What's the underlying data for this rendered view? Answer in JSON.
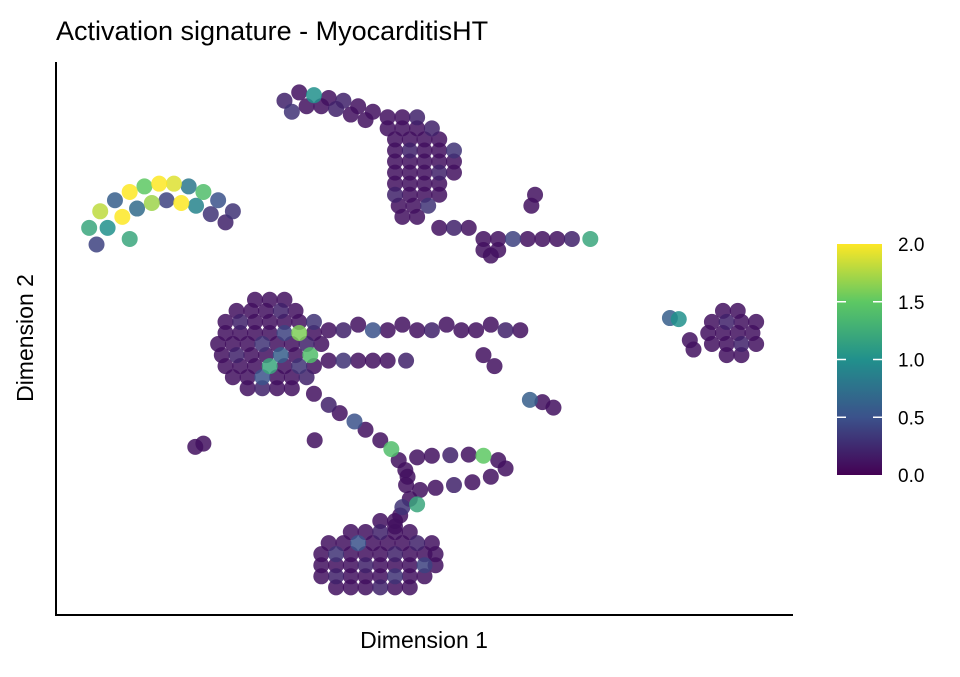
{
  "chart_data": {
    "type": "scatter",
    "title": "Activation signature - MyocarditisHT",
    "xlabel": "Dimension 1",
    "ylabel": "Dimension 2",
    "xlim": [
      0,
      100
    ],
    "ylim": [
      0,
      100
    ],
    "grid": false,
    "axis_ticks": false,
    "colorscale": "viridis",
    "colorscale_stops": [
      "#440154",
      "#3b528b",
      "#21908c",
      "#5dc863",
      "#fde725"
    ],
    "color_range": [
      0,
      2
    ],
    "legend": {
      "position": "right",
      "ticks": [
        "0.0",
        "0.5",
        "1.0",
        "1.5",
        "2.0"
      ]
    },
    "points": [
      [
        4.5,
        70,
        1.2
      ],
      [
        6,
        73,
        1.8
      ],
      [
        8,
        75,
        0.6
      ],
      [
        10,
        76.5,
        2.0
      ],
      [
        12,
        77.5,
        1.5
      ],
      [
        14,
        78,
        2.0
      ],
      [
        16,
        78,
        1.9
      ],
      [
        18,
        77.5,
        0.8
      ],
      [
        20,
        76.5,
        1.4
      ],
      [
        22,
        75,
        0.5
      ],
      [
        24,
        73,
        0.3
      ],
      [
        5.5,
        67,
        0.4
      ],
      [
        7,
        70,
        1.0
      ],
      [
        9,
        72,
        2.0
      ],
      [
        11,
        73.5,
        0.7
      ],
      [
        13,
        74.5,
        1.7
      ],
      [
        15,
        75,
        0.4
      ],
      [
        17,
        74.5,
        2.0
      ],
      [
        19,
        74,
        0.9
      ],
      [
        21,
        72.5,
        0.3
      ],
      [
        23,
        71,
        0.2
      ],
      [
        10,
        68,
        1.2
      ],
      [
        31,
        93,
        0.2
      ],
      [
        33,
        94.5,
        0.1
      ],
      [
        35,
        94,
        1.0
      ],
      [
        37,
        93.5,
        0.1
      ],
      [
        39,
        93,
        0.2
      ],
      [
        41,
        92,
        0.1
      ],
      [
        43,
        91,
        0.1
      ],
      [
        32,
        91,
        0.3
      ],
      [
        34,
        92,
        0.1
      ],
      [
        36,
        92,
        0.1
      ],
      [
        38,
        91.5,
        0.2
      ],
      [
        40,
        90.5,
        0.1
      ],
      [
        42,
        89.5,
        0.1
      ],
      [
        45,
        90,
        0.1
      ],
      [
        47,
        90,
        0.1
      ],
      [
        49,
        90,
        0.2
      ],
      [
        45,
        88,
        0.1
      ],
      [
        47,
        88,
        0.1
      ],
      [
        49,
        88,
        0.1
      ],
      [
        51,
        88,
        0.2
      ],
      [
        46,
        86,
        0.1
      ],
      [
        48,
        86,
        0.1
      ],
      [
        50,
        86,
        0.1
      ],
      [
        52,
        86,
        0.1
      ],
      [
        46,
        84,
        0.1
      ],
      [
        48,
        84,
        0.2
      ],
      [
        50,
        84,
        0.1
      ],
      [
        52,
        84,
        0.1
      ],
      [
        54,
        84,
        0.3
      ],
      [
        46,
        82,
        0.1
      ],
      [
        48,
        82,
        0.1
      ],
      [
        50,
        82,
        0.1
      ],
      [
        52,
        82,
        0.1
      ],
      [
        54,
        82,
        0.1
      ],
      [
        46,
        80,
        0.1
      ],
      [
        48,
        80,
        0.1
      ],
      [
        50,
        80,
        0.1
      ],
      [
        52,
        80,
        0.2
      ],
      [
        54,
        80,
        0.1
      ],
      [
        46,
        78,
        0.1
      ],
      [
        48,
        78,
        0.1
      ],
      [
        50,
        78,
        0.1
      ],
      [
        52,
        78,
        0.1
      ],
      [
        46,
        76,
        0.2
      ],
      [
        48,
        76,
        0.1
      ],
      [
        50,
        76,
        0.1
      ],
      [
        52,
        76,
        0.1
      ],
      [
        46.5,
        74,
        0.1
      ],
      [
        48.5,
        74,
        0.1
      ],
      [
        50.5,
        74,
        0.3
      ],
      [
        47,
        72,
        0.1
      ],
      [
        49,
        72,
        0.1
      ],
      [
        52,
        70,
        0.1
      ],
      [
        54,
        70,
        0.2
      ],
      [
        56,
        70,
        0.1
      ],
      [
        58,
        68,
        0.1
      ],
      [
        60,
        68,
        0.1
      ],
      [
        62,
        68,
        0.4
      ],
      [
        64,
        68,
        0.1
      ],
      [
        66,
        68,
        0.1
      ],
      [
        68,
        68,
        0.1
      ],
      [
        70,
        68,
        0.2
      ],
      [
        72.5,
        68,
        1.2
      ],
      [
        58,
        66,
        0.1
      ],
      [
        60,
        66,
        0.1
      ],
      [
        59,
        65,
        0.1
      ],
      [
        65,
        76,
        0.1
      ],
      [
        64.5,
        74,
        0.1
      ],
      [
        26,
        41,
        0.1
      ],
      [
        28,
        41,
        0.2
      ],
      [
        30,
        41,
        0.1
      ],
      [
        32,
        41,
        0.1
      ],
      [
        24,
        43,
        0.1
      ],
      [
        26,
        43,
        0.1
      ],
      [
        28,
        43,
        0.5
      ],
      [
        30,
        43,
        0.1
      ],
      [
        32,
        43,
        0.1
      ],
      [
        34,
        43,
        0.2
      ],
      [
        23,
        45,
        0.1
      ],
      [
        25,
        45,
        0.1
      ],
      [
        27,
        45,
        0.1
      ],
      [
        29,
        45,
        1.2
      ],
      [
        31,
        45,
        0.1
      ],
      [
        33,
        45,
        0.3
      ],
      [
        35,
        45,
        0.1
      ],
      [
        22.5,
        47,
        0.1
      ],
      [
        24.5,
        47,
        0.2
      ],
      [
        26.5,
        47,
        0.1
      ],
      [
        28.5,
        47,
        0.1
      ],
      [
        30.5,
        47,
        0.6
      ],
      [
        32.5,
        47,
        0.1
      ],
      [
        34.5,
        47,
        1.4
      ],
      [
        22,
        49,
        0.1
      ],
      [
        24,
        49,
        0.1
      ],
      [
        26,
        49,
        0.1
      ],
      [
        28,
        49,
        0.3
      ],
      [
        30,
        49,
        0.1
      ],
      [
        32,
        49,
        0.1
      ],
      [
        34,
        49,
        0.2
      ],
      [
        36,
        49,
        0.1
      ],
      [
        23,
        51,
        0.1
      ],
      [
        25,
        51,
        0.1
      ],
      [
        27,
        51,
        0.1
      ],
      [
        29,
        51,
        0.1
      ],
      [
        31,
        51,
        0.4
      ],
      [
        33,
        51,
        1.6
      ],
      [
        35,
        51,
        0.1
      ],
      [
        23,
        53,
        0.1
      ],
      [
        25,
        53,
        0.2
      ],
      [
        27,
        53,
        0.1
      ],
      [
        29,
        53,
        0.1
      ],
      [
        31,
        53,
        0.1
      ],
      [
        33,
        53,
        0.1
      ],
      [
        35,
        53,
        0.3
      ],
      [
        24.5,
        55,
        0.1
      ],
      [
        26.5,
        55,
        0.1
      ],
      [
        28.5,
        55,
        0.1
      ],
      [
        30.5,
        55,
        0.2
      ],
      [
        32.5,
        55,
        0.1
      ],
      [
        27,
        57,
        0.1
      ],
      [
        29,
        57,
        0.1
      ],
      [
        31,
        57,
        0.1
      ],
      [
        37,
        51.5,
        0.1
      ],
      [
        39,
        51.5,
        0.2
      ],
      [
        41,
        52.5,
        0.1
      ],
      [
        43,
        51.5,
        0.5
      ],
      [
        45,
        51.5,
        0.1
      ],
      [
        47,
        52.5,
        0.1
      ],
      [
        49,
        51.5,
        0.1
      ],
      [
        51,
        51.5,
        0.2
      ],
      [
        53,
        52.5,
        0.1
      ],
      [
        55,
        51.5,
        0.1
      ],
      [
        57,
        51.5,
        0.1
      ],
      [
        59,
        52.5,
        0.1
      ],
      [
        61,
        51.5,
        0.2
      ],
      [
        63,
        51.5,
        0.1
      ],
      [
        37,
        46,
        0.1
      ],
      [
        39,
        46,
        0.3
      ],
      [
        41,
        46,
        0.1
      ],
      [
        43,
        46,
        0.1
      ],
      [
        45,
        46,
        0.1
      ],
      [
        47.5,
        46,
        0.2
      ],
      [
        58,
        47,
        0.1
      ],
      [
        59.5,
        45,
        0.1
      ],
      [
        91,
        47,
        0.1
      ],
      [
        93,
        47,
        0.1
      ],
      [
        89,
        49,
        0.1
      ],
      [
        91,
        49,
        0.1
      ],
      [
        93,
        49,
        0.2
      ],
      [
        95,
        49,
        0.1
      ],
      [
        88.5,
        51,
        0.1
      ],
      [
        90.5,
        51,
        0.1
      ],
      [
        92.5,
        51,
        0.1
      ],
      [
        94.5,
        51,
        0.1
      ],
      [
        89,
        53,
        0.1
      ],
      [
        91,
        53,
        0.2
      ],
      [
        93,
        53,
        0.1
      ],
      [
        95,
        53,
        0.1
      ],
      [
        90.5,
        55,
        0.1
      ],
      [
        92.5,
        55,
        0.1
      ],
      [
        83.3,
        53.7,
        0.6
      ],
      [
        84.5,
        53.5,
        1.0
      ],
      [
        86,
        49.7,
        0.1
      ],
      [
        86.5,
        48,
        0.1
      ],
      [
        64.3,
        38.9,
        0.6
      ],
      [
        66,
        38.5,
        0.1
      ],
      [
        67.5,
        37.5,
        0.1
      ],
      [
        18.9,
        30.4,
        0.1
      ],
      [
        20,
        31,
        0.1
      ],
      [
        35.1,
        31.6,
        0.1
      ],
      [
        35,
        40,
        0.1
      ],
      [
        37,
        38,
        0.2
      ],
      [
        38.5,
        36.5,
        0.1
      ],
      [
        40.5,
        35,
        0.5
      ],
      [
        42,
        33.5,
        0.1
      ],
      [
        44,
        31.6,
        0.1
      ],
      [
        45.5,
        30,
        1.4
      ],
      [
        46.5,
        28,
        0.1
      ],
      [
        47.4,
        26.2,
        0.1
      ],
      [
        49,
        28.5,
        0.1
      ],
      [
        51,
        28.8,
        0.1
      ],
      [
        53.5,
        28.9,
        0.2
      ],
      [
        56,
        29,
        0.1
      ],
      [
        58,
        28.8,
        1.5
      ],
      [
        60,
        28,
        0.1
      ],
      [
        61,
        26.5,
        0.1
      ],
      [
        59,
        25,
        0.1
      ],
      [
        56.5,
        24,
        0.1
      ],
      [
        54,
        23.5,
        0.2
      ],
      [
        51.5,
        23,
        0.1
      ],
      [
        49.4,
        22.6,
        0.1
      ],
      [
        48,
        21,
        0.1
      ],
      [
        47,
        19.5,
        0.3
      ],
      [
        46.7,
        18,
        0.1
      ],
      [
        46,
        16,
        0.1
      ],
      [
        47.7,
        25,
        0.1
      ],
      [
        47.5,
        23.5,
        0.1
      ],
      [
        49,
        20,
        1.2
      ],
      [
        38,
        5,
        0.1
      ],
      [
        40,
        5,
        0.1
      ],
      [
        42,
        5,
        0.1
      ],
      [
        44,
        5,
        0.2
      ],
      [
        46,
        5,
        0.1
      ],
      [
        48,
        5,
        0.1
      ],
      [
        36,
        7,
        0.1
      ],
      [
        38,
        7,
        0.2
      ],
      [
        40,
        7,
        0.1
      ],
      [
        42,
        7,
        0.1
      ],
      [
        44,
        7,
        0.1
      ],
      [
        46,
        7,
        0.3
      ],
      [
        48,
        7,
        0.1
      ],
      [
        50,
        7,
        0.1
      ],
      [
        36,
        9,
        0.1
      ],
      [
        38,
        9,
        0.1
      ],
      [
        40,
        9,
        0.1
      ],
      [
        42,
        9,
        0.2
      ],
      [
        44,
        9,
        0.1
      ],
      [
        46,
        9,
        0.1
      ],
      [
        48,
        9,
        0.1
      ],
      [
        50,
        9,
        0.4
      ],
      [
        51.5,
        9,
        0.1
      ],
      [
        36,
        11,
        0.1
      ],
      [
        38,
        11,
        0.3
      ],
      [
        40,
        11,
        0.1
      ],
      [
        42,
        11,
        0.1
      ],
      [
        44,
        11,
        0.1
      ],
      [
        46,
        11,
        0.2
      ],
      [
        48,
        11,
        0.1
      ],
      [
        50,
        11,
        0.1
      ],
      [
        51.5,
        11,
        0.1
      ],
      [
        37,
        13,
        0.1
      ],
      [
        39,
        13,
        0.1
      ],
      [
        41,
        13,
        0.5
      ],
      [
        43,
        13,
        0.1
      ],
      [
        45,
        13,
        0.1
      ],
      [
        47,
        13,
        0.1
      ],
      [
        49,
        13,
        0.2
      ],
      [
        51,
        13,
        0.1
      ],
      [
        40,
        15,
        0.1
      ],
      [
        42,
        15,
        0.1
      ],
      [
        44,
        15,
        0.2
      ],
      [
        46,
        15,
        0.1
      ],
      [
        48,
        15,
        0.1
      ],
      [
        44,
        17,
        0.1
      ],
      [
        46,
        17,
        0.1
      ]
    ]
  }
}
